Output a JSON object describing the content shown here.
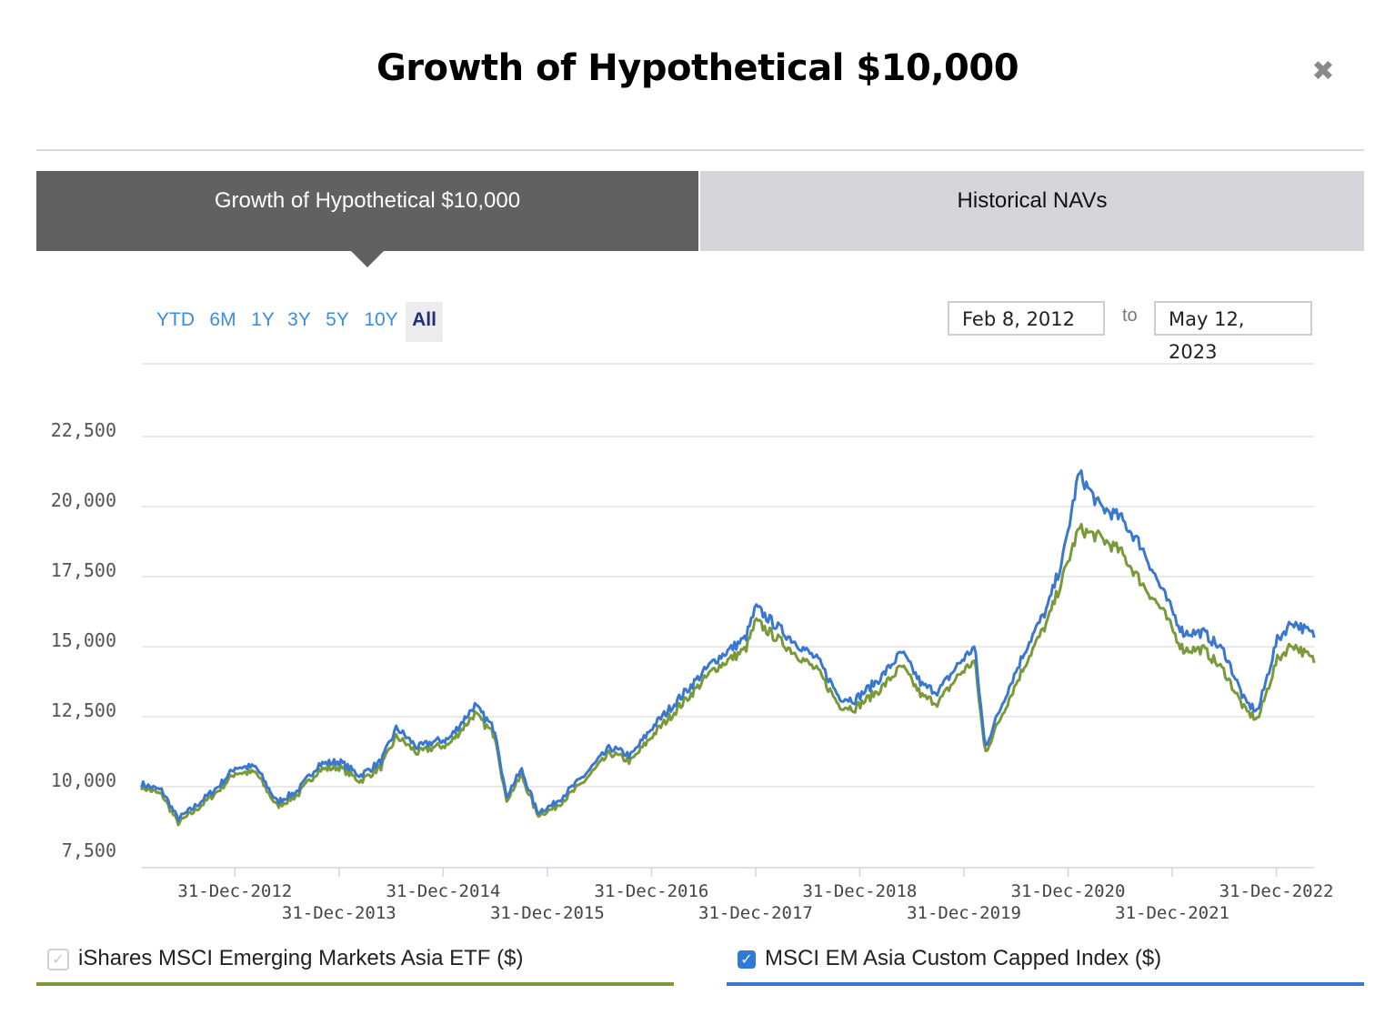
{
  "header": {
    "title": "Growth of Hypothetical $10,000",
    "close_icon": "close-icon"
  },
  "tabs": [
    {
      "label": "Growth of Hypothetical $10,000",
      "active": true
    },
    {
      "label": "Historical NAVs",
      "active": false
    }
  ],
  "range_buttons": [
    "YTD",
    "6M",
    "1Y",
    "3Y",
    "5Y",
    "10Y",
    "All"
  ],
  "selected_range": "All",
  "date_range": {
    "from": "Feb 8, 2012",
    "to_label": "to",
    "to": "May 12, 2023"
  },
  "legend": [
    {
      "label": "iShares MSCI Emerging Markets Asia ETF ($)",
      "color": "#7a9a3a",
      "checked": true,
      "disabled": true
    },
    {
      "label": "MSCI EM Asia Custom Capped Index ($)",
      "color": "#3a78d0",
      "checked": true,
      "disabled": false
    }
  ],
  "chart_data": {
    "type": "line",
    "title": "Growth of Hypothetical $10,000",
    "xlabel": "",
    "ylabel": "",
    "x_range": [
      "2012-02-08",
      "2023-05-12"
    ],
    "ylim": [
      7500,
      22500
    ],
    "yticks": [
      7500,
      10000,
      12500,
      15000,
      17500,
      20000,
      22500
    ],
    "ytick_labels": [
      "7,500",
      "10,000",
      "12,500",
      "15,000",
      "17,500",
      "20,000",
      "22,500"
    ],
    "xticks": [
      "2012-12-31",
      "2013-12-31",
      "2014-12-31",
      "2015-12-31",
      "2016-12-31",
      "2017-12-31",
      "2018-12-31",
      "2019-12-31",
      "2020-12-31",
      "2021-12-31",
      "2022-12-31"
    ],
    "xtick_labels": [
      "31-Dec-2012",
      "31-Dec-2013",
      "31-Dec-2014",
      "31-Dec-2015",
      "31-Dec-2016",
      "31-Dec-2017",
      "31-Dec-2018",
      "31-Dec-2019",
      "31-Dec-2020",
      "31-Dec-2021",
      "31-Dec-2022"
    ],
    "grid": true,
    "series": [
      {
        "name": "iShares MSCI Emerging Markets Asia ETF ($)",
        "color": "#7a9a3a",
        "x": [
          2012.1,
          2012.3,
          2012.45,
          2012.6,
          2012.85,
          2013.0,
          2013.2,
          2013.4,
          2013.5,
          2013.6,
          2013.8,
          2014.0,
          2014.2,
          2014.4,
          2014.55,
          2014.75,
          2014.9,
          2015.05,
          2015.3,
          2015.5,
          2015.6,
          2015.75,
          2015.9,
          2016.05,
          2016.3,
          2016.6,
          2016.8,
          2017.0,
          2017.3,
          2017.6,
          2017.9,
          2018.0,
          2018.3,
          2018.6,
          2018.8,
          2018.95,
          2019.2,
          2019.4,
          2019.6,
          2019.75,
          2019.95,
          2020.1,
          2020.2,
          2020.4,
          2020.6,
          2020.8,
          2020.95,
          2021.1,
          2021.3,
          2021.5,
          2021.7,
          2021.9,
          2022.1,
          2022.3,
          2022.5,
          2022.7,
          2022.82,
          2023.0,
          2023.15,
          2023.36
        ],
        "values": [
          10000,
          9700,
          8700,
          9100,
          9900,
          10500,
          10500,
          9300,
          9500,
          9700,
          10600,
          10700,
          10200,
          10700,
          11800,
          11200,
          11400,
          11500,
          12600,
          11800,
          9500,
          10400,
          9000,
          9200,
          10000,
          11200,
          10900,
          11800,
          13000,
          14200,
          14900,
          15900,
          15000,
          14100,
          12900,
          12800,
          13500,
          14300,
          13200,
          13000,
          14000,
          14500,
          11200,
          12900,
          14500,
          15900,
          17500,
          19200,
          18900,
          18400,
          17300,
          16300,
          14900,
          14900,
          14100,
          12700,
          12400,
          14500,
          15100,
          14500
        ]
      },
      {
        "name": "MSCI EM Asia Custom Capped Index ($)",
        "color": "#3a78d0",
        "x": [
          2012.1,
          2012.3,
          2012.45,
          2012.6,
          2012.85,
          2013.0,
          2013.2,
          2013.4,
          2013.5,
          2013.6,
          2013.8,
          2014.0,
          2014.2,
          2014.4,
          2014.55,
          2014.75,
          2014.9,
          2015.05,
          2015.3,
          2015.5,
          2015.6,
          2015.75,
          2015.9,
          2016.05,
          2016.3,
          2016.6,
          2016.8,
          2017.0,
          2017.3,
          2017.6,
          2017.9,
          2018.0,
          2018.3,
          2018.6,
          2018.8,
          2018.95,
          2019.2,
          2019.4,
          2019.6,
          2019.75,
          2019.95,
          2020.1,
          2020.2,
          2020.4,
          2020.6,
          2020.8,
          2020.95,
          2021.1,
          2021.3,
          2021.5,
          2021.7,
          2021.9,
          2022.1,
          2022.3,
          2022.5,
          2022.7,
          2022.82,
          2023.0,
          2023.15,
          2023.36
        ],
        "values": [
          10100,
          9850,
          8850,
          9250,
          10050,
          10700,
          10700,
          9450,
          9650,
          9850,
          10800,
          10900,
          10400,
          10900,
          12100,
          11400,
          11600,
          11700,
          12900,
          12000,
          9650,
          10600,
          9100,
          9350,
          10200,
          11400,
          11100,
          12100,
          13300,
          14500,
          15300,
          16400,
          15400,
          14500,
          13200,
          13100,
          13900,
          14800,
          13600,
          13400,
          14400,
          15000,
          11400,
          13300,
          15000,
          16400,
          18200,
          21200,
          20000,
          19600,
          18600,
          17000,
          15500,
          15500,
          14800,
          13000,
          12700,
          15200,
          15900,
          15400
        ]
      }
    ]
  }
}
